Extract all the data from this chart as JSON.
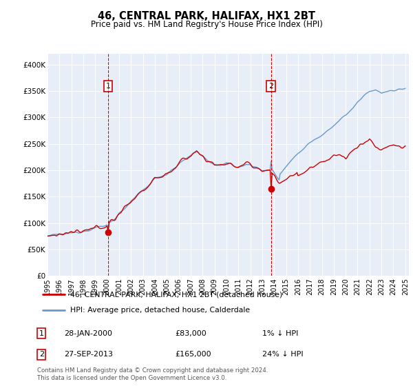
{
  "title": "46, CENTRAL PARK, HALIFAX, HX1 2BT",
  "subtitle": "Price paid vs. HM Land Registry's House Price Index (HPI)",
  "sale1_date": "28-JAN-2000",
  "sale1_price": 83000,
  "sale2_date": "27-SEP-2013",
  "sale2_price": 165000,
  "legend_line1": "46, CENTRAL PARK, HALIFAX, HX1 2BT (detached house)",
  "legend_line2": "HPI: Average price, detached house, Calderdale",
  "footer": "Contains HM Land Registry data © Crown copyright and database right 2024.\nThis data is licensed under the Open Government Licence v3.0.",
  "hpi_color": "#6699CC",
  "price_color": "#CC0000",
  "vline_color": "#CC0000",
  "background_color": "#E8EEF8",
  "ylim_min": 0,
  "ylim_max": 420000,
  "sale1_x": 2000.07,
  "sale2_x": 2013.74
}
